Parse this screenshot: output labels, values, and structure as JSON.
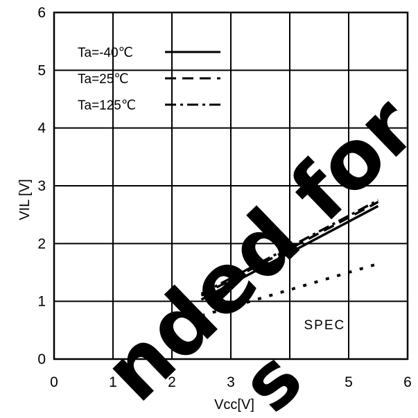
{
  "chart_data": {
    "type": "line",
    "xlabel": "Vcc[V]",
    "ylabel": "VIL [V]",
    "xlim": [
      0,
      6
    ],
    "ylim": [
      0,
      6
    ],
    "xticks": [
      "0",
      "1",
      "2",
      "3",
      "4",
      "5",
      "6"
    ],
    "yticks": [
      "0",
      "1",
      "2",
      "3",
      "4",
      "5",
      "6"
    ],
    "grid": true,
    "legend_position": "top-left",
    "series": [
      {
        "name": "Ta=-40℃",
        "style": "solid",
        "x": [
          2.5,
          5.5
        ],
        "y": [
          1.03,
          2.65
        ]
      },
      {
        "name": "Ta=25℃",
        "style": "dashed",
        "x": [
          2.5,
          5.5
        ],
        "y": [
          1.1,
          2.72
        ]
      },
      {
        "name": "Ta=125℃",
        "style": "dashdot",
        "x": [
          2.5,
          5.5
        ],
        "y": [
          1.13,
          2.75
        ]
      },
      {
        "name": "",
        "style": "dotted",
        "x": [
          2.5,
          5.5
        ],
        "y": [
          0.75,
          1.65
        ]
      }
    ],
    "annotations": [
      {
        "text": "SPEC",
        "x": 4.3,
        "y": 0.6
      }
    ],
    "watermark": {
      "main": "nded for",
      "sub": "s",
      "color": "#000000"
    }
  }
}
